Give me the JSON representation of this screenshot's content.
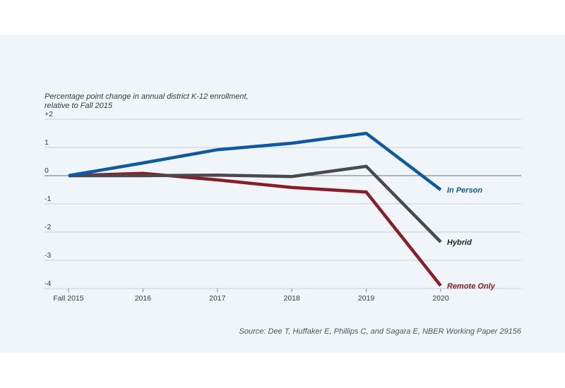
{
  "chart_data": {
    "type": "line",
    "title": "",
    "ylabel_line1": "Percentage point change in annual district K-12 enrollment,",
    "ylabel_line2": "relative to Fall 2015",
    "xlabel": "",
    "categories": [
      "Fall 2015",
      "2016",
      "2017",
      "2018",
      "2019",
      "2020"
    ],
    "yticks": [
      {
        "value": 2,
        "label": "+2"
      },
      {
        "value": 1,
        "label": "1"
      },
      {
        "value": 0,
        "label": "0"
      },
      {
        "value": -1,
        "label": "-1"
      },
      {
        "value": -2,
        "label": "-2"
      },
      {
        "value": -3,
        "label": "-3"
      },
      {
        "value": -4,
        "label": "-4"
      }
    ],
    "ylim": [
      -4,
      2
    ],
    "grid": true,
    "legend": "inline-right",
    "series": [
      {
        "name": "In Person",
        "color": "#0b5aa8",
        "values": [
          0,
          0.45,
          0.92,
          1.15,
          1.5,
          -0.5
        ]
      },
      {
        "name": "Hybrid",
        "color": "#4a4a4d",
        "values": [
          0,
          0.0,
          0.02,
          -0.03,
          0.33,
          -2.35
        ]
      },
      {
        "name": "Remote Only",
        "color": "#8b1c24",
        "values": [
          0,
          0.08,
          -0.15,
          -0.42,
          -0.58,
          -3.9
        ]
      }
    ],
    "source": "Source: Dee T, Huffaker E, Phillips C, and Sagara E, NBER Working Paper 29156"
  },
  "colors": {
    "panel_background": "#f0f5f9",
    "gridline": "#c9cdd1",
    "zero_line": "#6b6b6b"
  }
}
